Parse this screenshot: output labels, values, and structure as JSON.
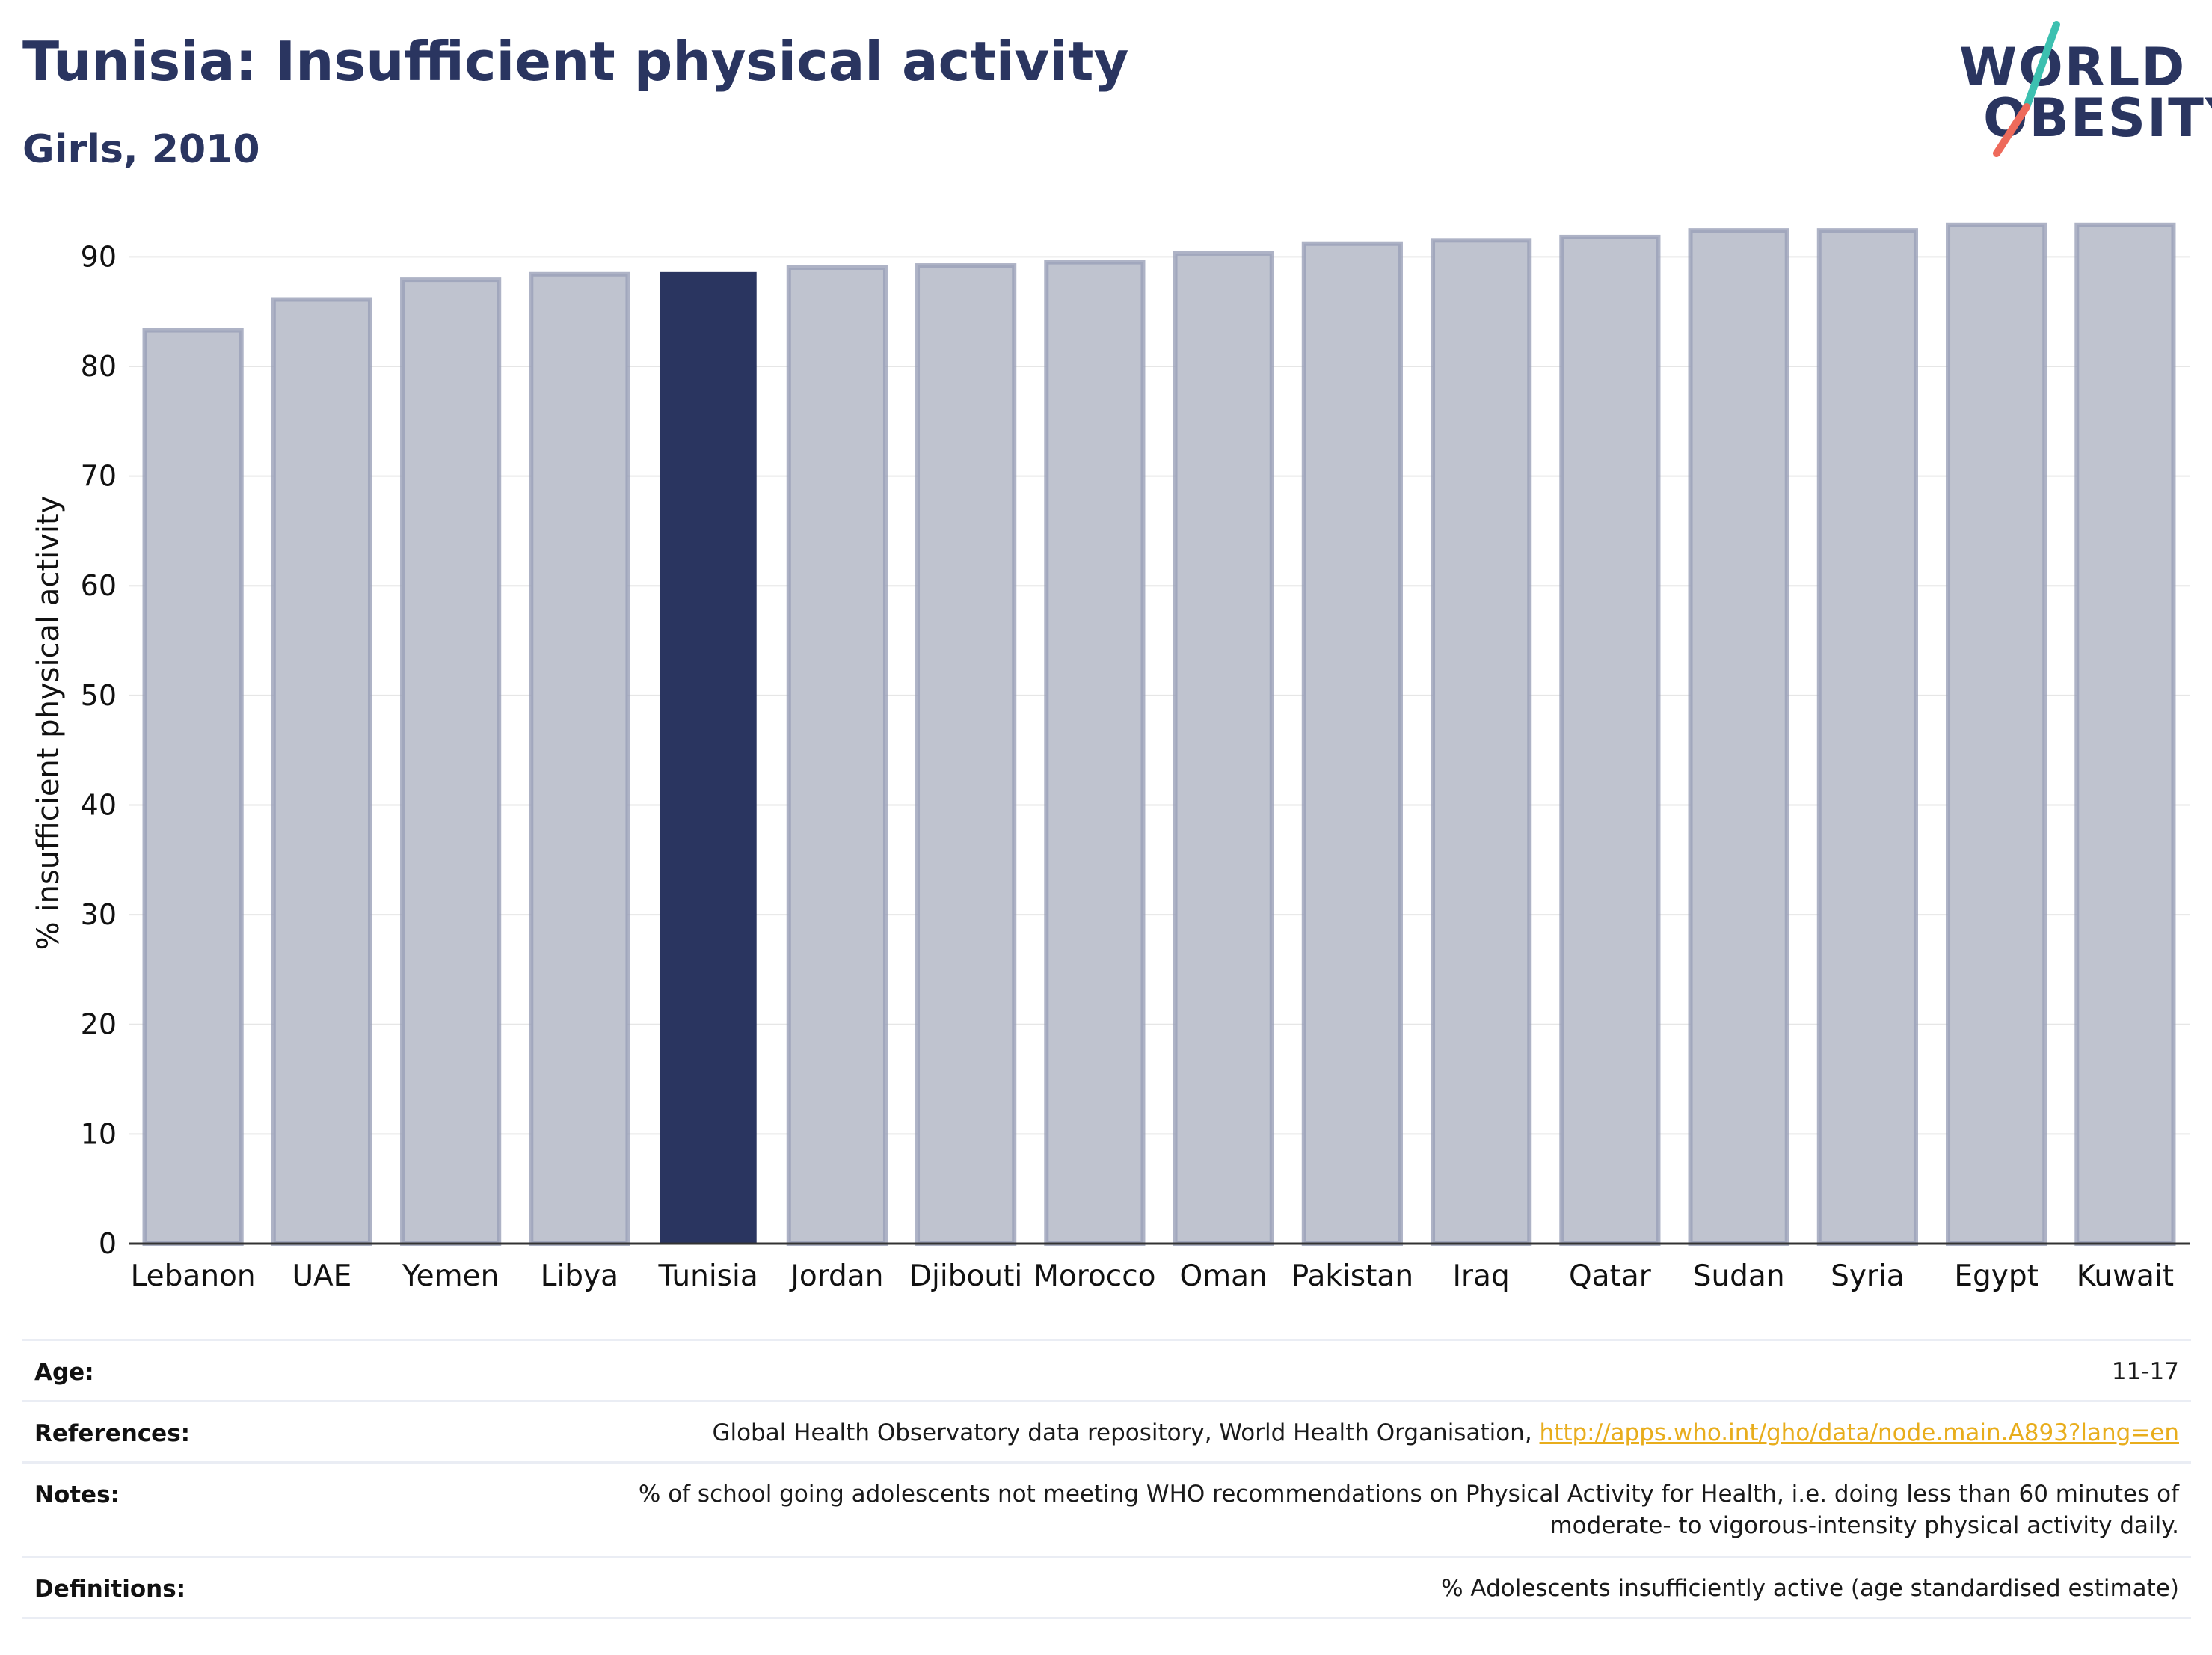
{
  "header": {
    "title": "Tunisia: Insufficient physical activity",
    "subtitle": "Girls, 2010"
  },
  "logo": {
    "line1": "WORLD",
    "line2": "OBESITY",
    "accent_teal": "#3cc0b0",
    "accent_coral": "#ee6a5b"
  },
  "colors": {
    "highlight": "#2a3560",
    "other_fill": "#bfc3cf",
    "other_stroke": "#9aa0b8",
    "grid": "#e6e6e6",
    "axis": "#333333",
    "text": "#111111"
  },
  "chart_data": {
    "type": "bar",
    "categories": [
      "Lebanon",
      "UAE",
      "Yemen",
      "Libya",
      "Tunisia",
      "Jordan",
      "Djibouti",
      "Morocco",
      "Oman",
      "Pakistan",
      "Iraq",
      "Qatar",
      "Sudan",
      "Syria",
      "Egypt",
      "Kuwait"
    ],
    "values": [
      83.3,
      86.1,
      87.9,
      88.4,
      88.6,
      89.0,
      89.2,
      89.5,
      90.3,
      91.2,
      91.5,
      91.8,
      92.4,
      92.4,
      92.9,
      92.9
    ],
    "highlight": "Tunisia",
    "ylabel": "% insufficient physical activity",
    "xlabel": "",
    "ylim": [
      0,
      95
    ],
    "yticks": [
      0,
      10,
      20,
      30,
      40,
      50,
      60,
      70,
      80,
      90
    ],
    "grid": true
  },
  "footer": {
    "age_label": "Age:",
    "age_value": "11-17",
    "references_label": "References:",
    "references_text": "Global Health Observatory data repository, World Health Organisation, ",
    "references_link": "http://apps.who.int/gho/data/node.main.A893?lang=en",
    "notes_label": "Notes:",
    "notes_line1": "% of school going adolescents not meeting WHO recommendations on Physical Activity for Health, i.e. doing less than 60 minutes of",
    "notes_line2": "moderate- to vigorous-intensity physical activity daily.",
    "definitions_label": "Definitions:",
    "definitions_value": "% Adolescents insufficiently active (age standardised estimate)"
  }
}
